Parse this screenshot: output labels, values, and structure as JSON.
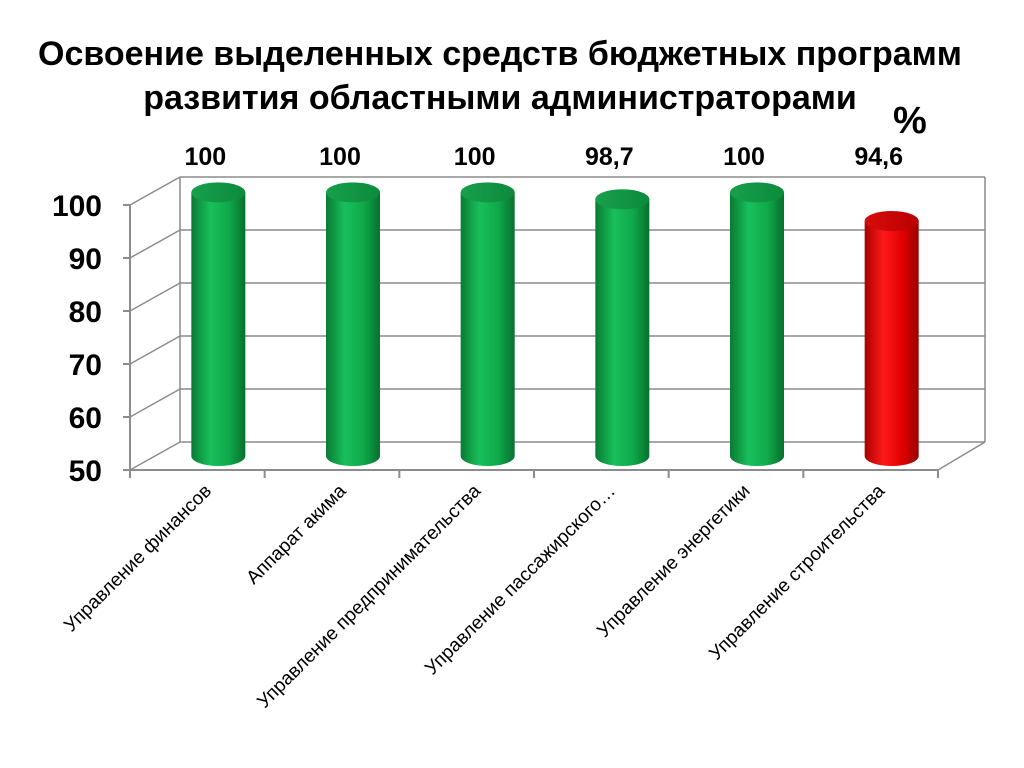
{
  "title_line1": "Освоение выделенных средств бюджетных программ",
  "title_line2": "развития областными администраторами",
  "unit": "%",
  "chart_data": {
    "type": "bar",
    "title": "Освоение выделенных средств бюджетных программ развития областными администраторами",
    "unit": "%",
    "categories": [
      "Управление финансов",
      "Аппарат акима",
      "Управление предпринимательства",
      "Управление пассажирского…",
      "Управление энергетики",
      "Управление строительства"
    ],
    "values": [
      100,
      100,
      100,
      98.7,
      100,
      94.6
    ],
    "value_labels": [
      "100",
      "100",
      "100",
      "98,7",
      "100",
      "94,6"
    ],
    "colors": [
      "#0fa84a",
      "#0fa84a",
      "#0fa84a",
      "#0fa84a",
      "#0fa84a",
      "#e00000"
    ],
    "ylim": [
      50,
      100
    ],
    "yticks": [
      50,
      60,
      70,
      80,
      90,
      100
    ],
    "grid": true,
    "legend": "none",
    "style": "3d-cylinder"
  }
}
